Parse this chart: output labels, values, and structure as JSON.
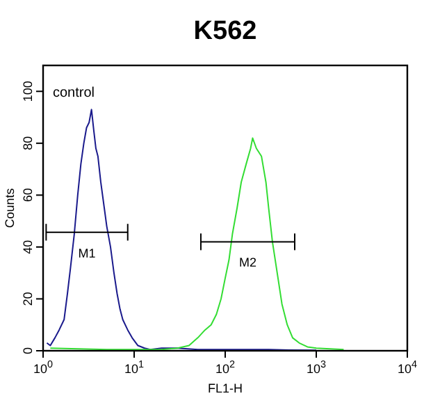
{
  "chart_data": {
    "type": "line",
    "title": "K562",
    "xlabel": "FL1-H",
    "ylabel": "Counts",
    "log": "x",
    "grid": false,
    "legend": false,
    "marker": "none",
    "line_style": "solid",
    "xlim": [
      1,
      10000
    ],
    "ylim": [
      0,
      110
    ],
    "xticks": [
      {
        "value": 1,
        "label": "10$^{0}$"
      },
      {
        "value": 10,
        "label": "10$^{1}$"
      },
      {
        "value": 100,
        "label": "10$^{2}$"
      },
      {
        "value": 1000,
        "label": "10$^{3}$"
      },
      {
        "value": 10000,
        "label": "10$^{4}$"
      }
    ],
    "yticks": [
      0,
      20,
      40,
      60,
      80,
      100
    ],
    "series": [
      {
        "color": "#1a1a8c",
        "x": [
          1.1,
          1.2,
          1.35,
          1.5,
          1.7,
          1.85,
          2,
          2.2,
          2.4,
          2.6,
          2.8,
          3,
          3.2,
          3.4,
          3.6,
          3.8,
          4,
          4.3,
          4.7,
          5,
          5.5,
          6,
          6.5,
          7,
          7.5,
          8.5,
          9.5,
          11,
          13,
          15,
          20,
          30,
          50,
          100,
          200,
          300,
          500,
          1000
        ],
        "values": [
          3,
          2,
          5,
          8,
          12,
          22,
          32,
          45,
          60,
          72,
          80,
          86,
          88,
          93,
          85,
          78,
          75,
          65,
          55,
          48,
          40,
          30,
          22,
          16,
          12,
          8,
          5,
          2,
          1,
          0.5,
          1,
          1,
          0.5,
          0.5,
          0.5,
          0.5,
          0.3,
          0.2
        ]
      },
      {
        "color": "#33dd33",
        "x": [
          1.2,
          5,
          20,
          30,
          40,
          50,
          60,
          70,
          80,
          90,
          100,
          110,
          120,
          135,
          150,
          170,
          190,
          200,
          220,
          250,
          280,
          300,
          330,
          380,
          420,
          480,
          550,
          650,
          800,
          1000,
          2000
        ],
        "values": [
          1,
          0.5,
          0.5,
          1,
          2,
          5,
          8,
          10,
          14,
          20,
          28,
          35,
          45,
          55,
          65,
          72,
          78,
          82,
          78,
          75,
          65,
          55,
          42,
          28,
          18,
          10,
          5,
          3,
          1.5,
          1,
          0.5
        ]
      },
      {
        "name": "M1",
        "type": "line",
        "color": "#000000",
        "x": [
          1.08,
          8.5
        ],
        "values": [
          45.7,
          45.7
        ]
      },
      {
        "name": "M2",
        "type": "line",
        "color": "#000000",
        "x": [
          54,
          580
        ],
        "values": [
          42,
          42
        ]
      }
    ],
    "annotations": [
      "control"
    ]
  }
}
